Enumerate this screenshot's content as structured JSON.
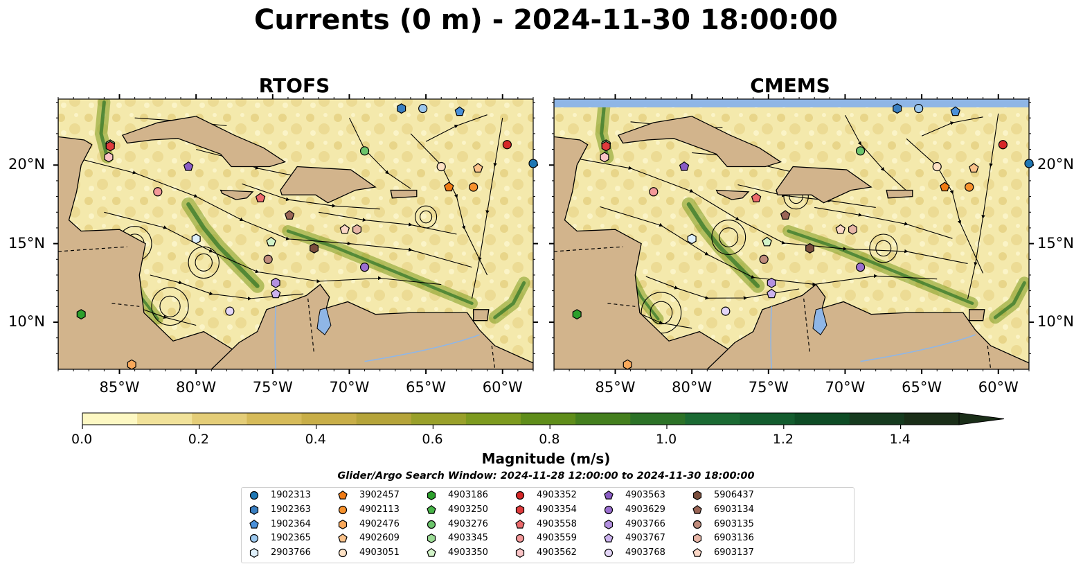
{
  "title": "Currents (0 m) - 2024-11-30 18:00:00",
  "panels": [
    {
      "id": "rtofs",
      "title": "RTOFS"
    },
    {
      "id": "cmems",
      "title": "CMEMS"
    }
  ],
  "map": {
    "lon_range": [
      -89.0,
      -58.0
    ],
    "lat_range": [
      7.0,
      24.2
    ],
    "lon_ticks": [
      "85°W",
      "80°W",
      "75°W",
      "70°W",
      "65°W",
      "60°W"
    ],
    "lat_ticks": [
      "20°N",
      "15°N",
      "10°N"
    ],
    "land_color": "#d2b48c",
    "water_color": "#8fb6e6",
    "coastline_color": "#000000"
  },
  "colorbar": {
    "label": "Magnitude (m/s)",
    "range": [
      0.0,
      1.5
    ],
    "extend": "max",
    "ticks": [
      "0.0",
      "0.2",
      "0.4",
      "0.6",
      "0.8",
      "1.0",
      "1.2",
      "1.4"
    ],
    "colors": [
      "#fdf8c3",
      "#f1e29a",
      "#e4cd78",
      "#d6bb5a",
      "#c8ae48",
      "#b5a43a",
      "#99a02a",
      "#7d9a1f",
      "#5f8d1a",
      "#447f1e",
      "#2c7227",
      "#1b6a33",
      "#135c2e",
      "#0e4c25",
      "#163b1f",
      "#1a2e18"
    ]
  },
  "search_window": "Glider/Argo Search Window: 2024-11-28 12:00:00 to 2024-11-30 18:00:00",
  "legend": [
    {
      "id": "1902313",
      "marker": "circle",
      "color": "#1f77b4"
    },
    {
      "id": "1902363",
      "marker": "hexagon",
      "color": "#3a7fc1"
    },
    {
      "id": "1902364",
      "marker": "pentagon",
      "color": "#4a90d9"
    },
    {
      "id": "1902365",
      "marker": "circle",
      "color": "#9cc8ee"
    },
    {
      "id": "2903766",
      "marker": "hexagon",
      "color": "#dff0fb"
    },
    {
      "id": "3902457",
      "marker": "pentagon",
      "color": "#f07b14"
    },
    {
      "id": "4902113",
      "marker": "circle",
      "color": "#f7922d"
    },
    {
      "id": "4902476",
      "marker": "hexagon",
      "color": "#f9a85a"
    },
    {
      "id": "4902609",
      "marker": "pentagon",
      "color": "#fbc28a"
    },
    {
      "id": "4903051",
      "marker": "circle",
      "color": "#fde1c4"
    },
    {
      "id": "4903186",
      "marker": "hexagon",
      "color": "#2ca02c"
    },
    {
      "id": "4903250",
      "marker": "pentagon",
      "color": "#48b548"
    },
    {
      "id": "4903276",
      "marker": "circle",
      "color": "#6cc56c"
    },
    {
      "id": "4903345",
      "marker": "hexagon",
      "color": "#9bdc95"
    },
    {
      "id": "4903350",
      "marker": "pentagon",
      "color": "#d2f3c8"
    },
    {
      "id": "4903352",
      "marker": "circle",
      "color": "#d62728"
    },
    {
      "id": "4903354",
      "marker": "hexagon",
      "color": "#e03b3d"
    },
    {
      "id": "4903558",
      "marker": "pentagon",
      "color": "#ec6a6c"
    },
    {
      "id": "4903559",
      "marker": "circle",
      "color": "#f4999a"
    },
    {
      "id": "4903562",
      "marker": "hexagon",
      "color": "#fac4c6"
    },
    {
      "id": "4903563",
      "marker": "pentagon",
      "color": "#8a5cc4"
    },
    {
      "id": "4903629",
      "marker": "circle",
      "color": "#9b6fd0"
    },
    {
      "id": "4903766",
      "marker": "hexagon",
      "color": "#b390e0"
    },
    {
      "id": "4903767",
      "marker": "pentagon",
      "color": "#cbb2ee"
    },
    {
      "id": "4903768",
      "marker": "circle",
      "color": "#e4d6f8"
    },
    {
      "id": "5906437",
      "marker": "hexagon",
      "color": "#7a4e3d"
    },
    {
      "id": "6903134",
      "marker": "pentagon",
      "color": "#9a6556"
    },
    {
      "id": "6903135",
      "marker": "circle",
      "color": "#c08c7c"
    },
    {
      "id": "6903136",
      "marker": "hexagon",
      "color": "#e6b5a6"
    },
    {
      "id": "6903137",
      "marker": "pentagon",
      "color": "#fbd7c6"
    }
  ],
  "platforms": [
    {
      "id": "1902313",
      "lon": -58.0,
      "lat": 20.1
    },
    {
      "id": "1902363",
      "lon": -66.6,
      "lat": 23.6
    },
    {
      "id": "1902364",
      "lon": -62.8,
      "lat": 23.4
    },
    {
      "id": "1902365",
      "lon": -65.2,
      "lat": 23.6
    },
    {
      "id": "2903766",
      "lon": -80.0,
      "lat": 15.3
    },
    {
      "id": "3902457",
      "lon": -63.5,
      "lat": 18.6
    },
    {
      "id": "4902113",
      "lon": -61.9,
      "lat": 18.6
    },
    {
      "id": "4902476",
      "lon": -84.2,
      "lat": 7.3
    },
    {
      "id": "4902609",
      "lon": -61.6,
      "lat": 19.8
    },
    {
      "id": "4903051",
      "lon": -64.0,
      "lat": 19.9
    },
    {
      "id": "4903186",
      "lon": -87.5,
      "lat": 10.5
    },
    {
      "id": "4903250",
      "lon": -85.6,
      "lat": 21.3
    },
    {
      "id": "4903276",
      "lon": -69.0,
      "lat": 20.9
    },
    {
      "id": "4903345",
      "lon": -85.6,
      "lat": 21.3
    },
    {
      "id": "4903350",
      "lon": -75.1,
      "lat": 15.1
    },
    {
      "id": "4903352",
      "lon": -59.7,
      "lat": 21.3
    },
    {
      "id": "4903354",
      "lon": -85.6,
      "lat": 21.2
    },
    {
      "id": "4903558",
      "lon": -75.8,
      "lat": 17.9
    },
    {
      "id": "4903559",
      "lon": -82.5,
      "lat": 18.3
    },
    {
      "id": "4903562",
      "lon": -85.7,
      "lat": 20.5
    },
    {
      "id": "4903563",
      "lon": -80.5,
      "lat": 19.9
    },
    {
      "id": "4903629",
      "lon": -69.0,
      "lat": 13.5
    },
    {
      "id": "4903766",
      "lon": -74.8,
      "lat": 12.5
    },
    {
      "id": "4903767",
      "lon": -74.8,
      "lat": 11.8
    },
    {
      "id": "4903768",
      "lon": -77.8,
      "lat": 10.7
    },
    {
      "id": "5906437",
      "lon": -72.3,
      "lat": 14.7
    },
    {
      "id": "6903134",
      "lon": -73.9,
      "lat": 16.8
    },
    {
      "id": "6903135",
      "lon": -75.3,
      "lat": 14.0
    },
    {
      "id": "6903136",
      "lon": -69.5,
      "lat": 15.9
    },
    {
      "id": "6903137",
      "lon": -70.3,
      "lat": 15.9
    }
  ]
}
